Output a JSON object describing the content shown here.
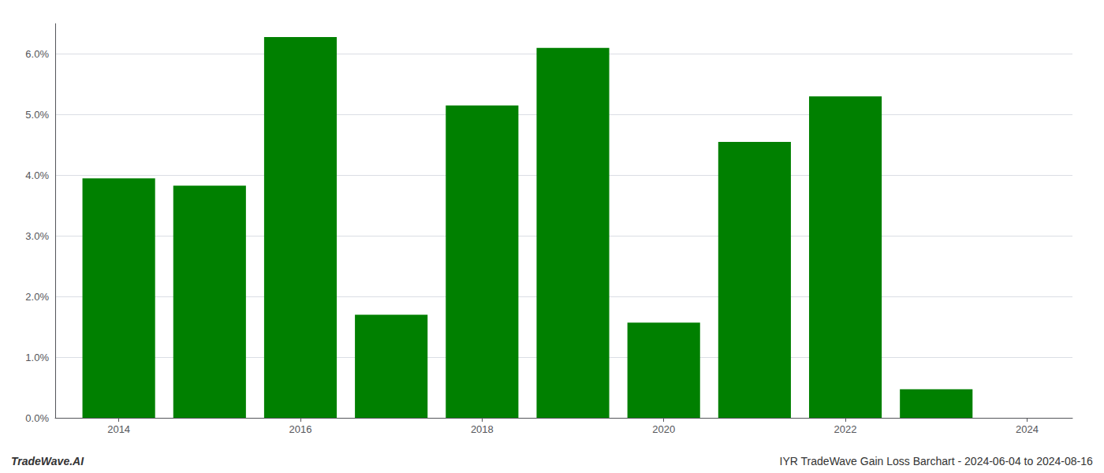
{
  "chart_data": {
    "type": "bar",
    "x": [
      2014,
      2015,
      2016,
      2017,
      2018,
      2019,
      2020,
      2021,
      2022,
      2023
    ],
    "values": [
      0.0395,
      0.0383,
      0.0628,
      0.017,
      0.0515,
      0.061,
      0.0157,
      0.0455,
      0.053,
      0.0047
    ],
    "color": "#008000",
    "xlim": [
      2013.3,
      2024.5
    ],
    "xticks": [
      2014,
      2016,
      2018,
      2020,
      2022,
      2024
    ],
    "ylim": [
      0.0,
      0.065
    ],
    "yticks": [
      {
        "value": 0.0,
        "label": "0.0%"
      },
      {
        "value": 0.01,
        "label": "1.0%"
      },
      {
        "value": 0.02,
        "label": "2.0%"
      },
      {
        "value": 0.03,
        "label": "3.0%"
      },
      {
        "value": 0.04,
        "label": "4.0%"
      },
      {
        "value": 0.05,
        "label": "5.0%"
      },
      {
        "value": 0.06,
        "label": "6.0%"
      }
    ],
    "grid": true,
    "annotations": [
      "TradeWave.AI",
      "IYR TradeWave Gain Loss Barchart - 2024-06-04 to 2024-08-16"
    ]
  }
}
